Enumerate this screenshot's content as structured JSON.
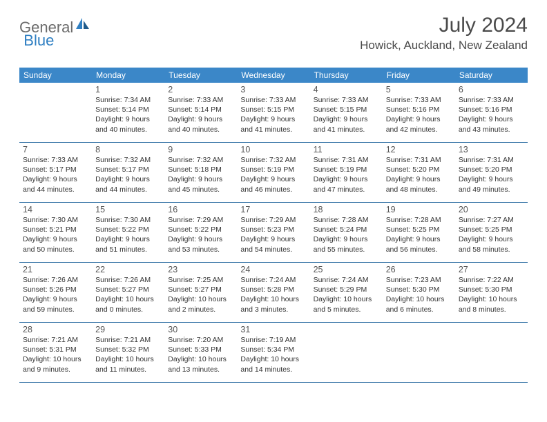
{
  "logo": {
    "text1": "General",
    "text2": "Blue"
  },
  "title": "July 2024",
  "location": "Howick, Auckland, New Zealand",
  "header_bg": "#3b87c8",
  "weekdays": [
    "Sunday",
    "Monday",
    "Tuesday",
    "Wednesday",
    "Thursday",
    "Friday",
    "Saturday"
  ],
  "weeks": [
    [
      {},
      {
        "n": "1",
        "sr": "Sunrise: 7:34 AM",
        "ss": "Sunset: 5:14 PM",
        "d1": "Daylight: 9 hours",
        "d2": "and 40 minutes."
      },
      {
        "n": "2",
        "sr": "Sunrise: 7:33 AM",
        "ss": "Sunset: 5:14 PM",
        "d1": "Daylight: 9 hours",
        "d2": "and 40 minutes."
      },
      {
        "n": "3",
        "sr": "Sunrise: 7:33 AM",
        "ss": "Sunset: 5:15 PM",
        "d1": "Daylight: 9 hours",
        "d2": "and 41 minutes."
      },
      {
        "n": "4",
        "sr": "Sunrise: 7:33 AM",
        "ss": "Sunset: 5:15 PM",
        "d1": "Daylight: 9 hours",
        "d2": "and 41 minutes."
      },
      {
        "n": "5",
        "sr": "Sunrise: 7:33 AM",
        "ss": "Sunset: 5:16 PM",
        "d1": "Daylight: 9 hours",
        "d2": "and 42 minutes."
      },
      {
        "n": "6",
        "sr": "Sunrise: 7:33 AM",
        "ss": "Sunset: 5:16 PM",
        "d1": "Daylight: 9 hours",
        "d2": "and 43 minutes."
      }
    ],
    [
      {
        "n": "7",
        "sr": "Sunrise: 7:33 AM",
        "ss": "Sunset: 5:17 PM",
        "d1": "Daylight: 9 hours",
        "d2": "and 44 minutes."
      },
      {
        "n": "8",
        "sr": "Sunrise: 7:32 AM",
        "ss": "Sunset: 5:17 PM",
        "d1": "Daylight: 9 hours",
        "d2": "and 44 minutes."
      },
      {
        "n": "9",
        "sr": "Sunrise: 7:32 AM",
        "ss": "Sunset: 5:18 PM",
        "d1": "Daylight: 9 hours",
        "d2": "and 45 minutes."
      },
      {
        "n": "10",
        "sr": "Sunrise: 7:32 AM",
        "ss": "Sunset: 5:19 PM",
        "d1": "Daylight: 9 hours",
        "d2": "and 46 minutes."
      },
      {
        "n": "11",
        "sr": "Sunrise: 7:31 AM",
        "ss": "Sunset: 5:19 PM",
        "d1": "Daylight: 9 hours",
        "d2": "and 47 minutes."
      },
      {
        "n": "12",
        "sr": "Sunrise: 7:31 AM",
        "ss": "Sunset: 5:20 PM",
        "d1": "Daylight: 9 hours",
        "d2": "and 48 minutes."
      },
      {
        "n": "13",
        "sr": "Sunrise: 7:31 AM",
        "ss": "Sunset: 5:20 PM",
        "d1": "Daylight: 9 hours",
        "d2": "and 49 minutes."
      }
    ],
    [
      {
        "n": "14",
        "sr": "Sunrise: 7:30 AM",
        "ss": "Sunset: 5:21 PM",
        "d1": "Daylight: 9 hours",
        "d2": "and 50 minutes."
      },
      {
        "n": "15",
        "sr": "Sunrise: 7:30 AM",
        "ss": "Sunset: 5:22 PM",
        "d1": "Daylight: 9 hours",
        "d2": "and 51 minutes."
      },
      {
        "n": "16",
        "sr": "Sunrise: 7:29 AM",
        "ss": "Sunset: 5:22 PM",
        "d1": "Daylight: 9 hours",
        "d2": "and 53 minutes."
      },
      {
        "n": "17",
        "sr": "Sunrise: 7:29 AM",
        "ss": "Sunset: 5:23 PM",
        "d1": "Daylight: 9 hours",
        "d2": "and 54 minutes."
      },
      {
        "n": "18",
        "sr": "Sunrise: 7:28 AM",
        "ss": "Sunset: 5:24 PM",
        "d1": "Daylight: 9 hours",
        "d2": "and 55 minutes."
      },
      {
        "n": "19",
        "sr": "Sunrise: 7:28 AM",
        "ss": "Sunset: 5:25 PM",
        "d1": "Daylight: 9 hours",
        "d2": "and 56 minutes."
      },
      {
        "n": "20",
        "sr": "Sunrise: 7:27 AM",
        "ss": "Sunset: 5:25 PM",
        "d1": "Daylight: 9 hours",
        "d2": "and 58 minutes."
      }
    ],
    [
      {
        "n": "21",
        "sr": "Sunrise: 7:26 AM",
        "ss": "Sunset: 5:26 PM",
        "d1": "Daylight: 9 hours",
        "d2": "and 59 minutes."
      },
      {
        "n": "22",
        "sr": "Sunrise: 7:26 AM",
        "ss": "Sunset: 5:27 PM",
        "d1": "Daylight: 10 hours",
        "d2": "and 0 minutes."
      },
      {
        "n": "23",
        "sr": "Sunrise: 7:25 AM",
        "ss": "Sunset: 5:27 PM",
        "d1": "Daylight: 10 hours",
        "d2": "and 2 minutes."
      },
      {
        "n": "24",
        "sr": "Sunrise: 7:24 AM",
        "ss": "Sunset: 5:28 PM",
        "d1": "Daylight: 10 hours",
        "d2": "and 3 minutes."
      },
      {
        "n": "25",
        "sr": "Sunrise: 7:24 AM",
        "ss": "Sunset: 5:29 PM",
        "d1": "Daylight: 10 hours",
        "d2": "and 5 minutes."
      },
      {
        "n": "26",
        "sr": "Sunrise: 7:23 AM",
        "ss": "Sunset: 5:30 PM",
        "d1": "Daylight: 10 hours",
        "d2": "and 6 minutes."
      },
      {
        "n": "27",
        "sr": "Sunrise: 7:22 AM",
        "ss": "Sunset: 5:30 PM",
        "d1": "Daylight: 10 hours",
        "d2": "and 8 minutes."
      }
    ],
    [
      {
        "n": "28",
        "sr": "Sunrise: 7:21 AM",
        "ss": "Sunset: 5:31 PM",
        "d1": "Daylight: 10 hours",
        "d2": "and 9 minutes."
      },
      {
        "n": "29",
        "sr": "Sunrise: 7:21 AM",
        "ss": "Sunset: 5:32 PM",
        "d1": "Daylight: 10 hours",
        "d2": "and 11 minutes."
      },
      {
        "n": "30",
        "sr": "Sunrise: 7:20 AM",
        "ss": "Sunset: 5:33 PM",
        "d1": "Daylight: 10 hours",
        "d2": "and 13 minutes."
      },
      {
        "n": "31",
        "sr": "Sunrise: 7:19 AM",
        "ss": "Sunset: 5:34 PM",
        "d1": "Daylight: 10 hours",
        "d2": "and 14 minutes."
      },
      {},
      {},
      {}
    ]
  ]
}
